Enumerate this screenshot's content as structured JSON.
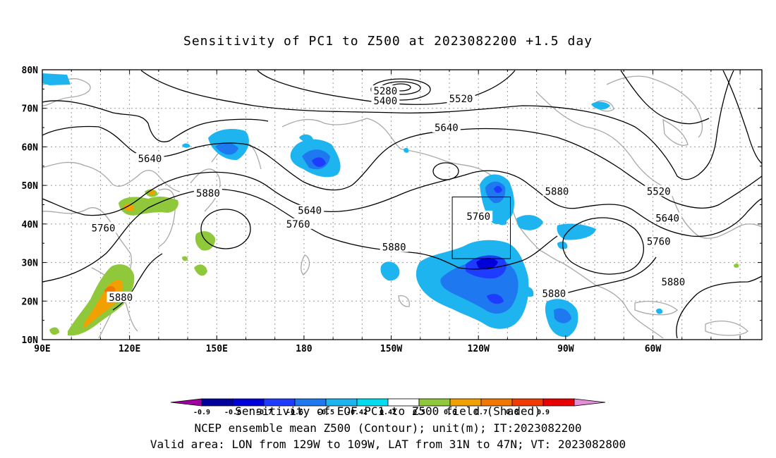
{
  "title": "Sensitivity of PC1 to Z500 at 2023082200 +1.5 day",
  "lat_labels": [
    "80N",
    "70N",
    "60N",
    "50N",
    "40N",
    "30N",
    "20N",
    "10N"
  ],
  "lon_labels": [
    "90E",
    "120E",
    "150E",
    "180",
    "150W",
    "120W",
    "90W",
    "60W"
  ],
  "contour_labels": [
    {
      "text": "5280",
      "lon": 208,
      "lat": 74.5
    },
    {
      "text": "5400",
      "lon": 208,
      "lat": 72
    },
    {
      "text": "5520",
      "lon": 234,
      "lat": 72.5
    },
    {
      "text": "5640",
      "lon": 229,
      "lat": 65
    },
    {
      "text": "5640",
      "lon": 127,
      "lat": 57
    },
    {
      "text": "5640",
      "lon": 182,
      "lat": 43.5
    },
    {
      "text": "5640",
      "lon": 305,
      "lat": 41.5
    },
    {
      "text": "5520",
      "lon": 302,
      "lat": 48.5
    },
    {
      "text": "5760",
      "lon": 111,
      "lat": 39
    },
    {
      "text": "5760",
      "lon": 178,
      "lat": 40
    },
    {
      "text": "5760",
      "lon": 240,
      "lat": 42
    },
    {
      "text": "5760",
      "lon": 302,
      "lat": 35.5
    },
    {
      "text": "5880",
      "lon": 147,
      "lat": 48
    },
    {
      "text": "5880",
      "lon": 267,
      "lat": 48.5
    },
    {
      "text": "5880",
      "lon": 211,
      "lat": 34
    },
    {
      "text": "5880",
      "lon": 117,
      "lat": 21
    },
    {
      "text": "5880",
      "lon": 266,
      "lat": 22
    },
    {
      "text": "5880",
      "lon": 307,
      "lat": 25
    }
  ],
  "valid_box": {
    "lon_range": [
      "129W",
      "109W"
    ],
    "lat_range": [
      "31N",
      "47N"
    ]
  },
  "colorbar": {
    "ticks": [
      "-0.9",
      "-0.8",
      "-0.7",
      "-0.6",
      "-0.5",
      "-0.42",
      "0.42",
      "0.5",
      "0.6",
      "0.7",
      "0.8",
      "0.9"
    ],
    "colors": [
      "#a000a0",
      "#00009c",
      "#0000d8",
      "#1e3cff",
      "#1e78f0",
      "#1eb4f0",
      "#00dcf0",
      "#ffffff",
      "#90c83c",
      "#f0a000",
      "#f07800",
      "#f03c00",
      "#e80000",
      "#e48ed8"
    ]
  },
  "footer": {
    "line1": "Sensitivity of EOF PC1 to Z500 field (Shaded)",
    "line2": "NCEP ensemble mean Z500 (Contour); unit(m); IT:2023082200",
    "line3": "Valid area: LON from 129W to 109W, LAT from 31N to 47N; VT: 2023082800"
  }
}
